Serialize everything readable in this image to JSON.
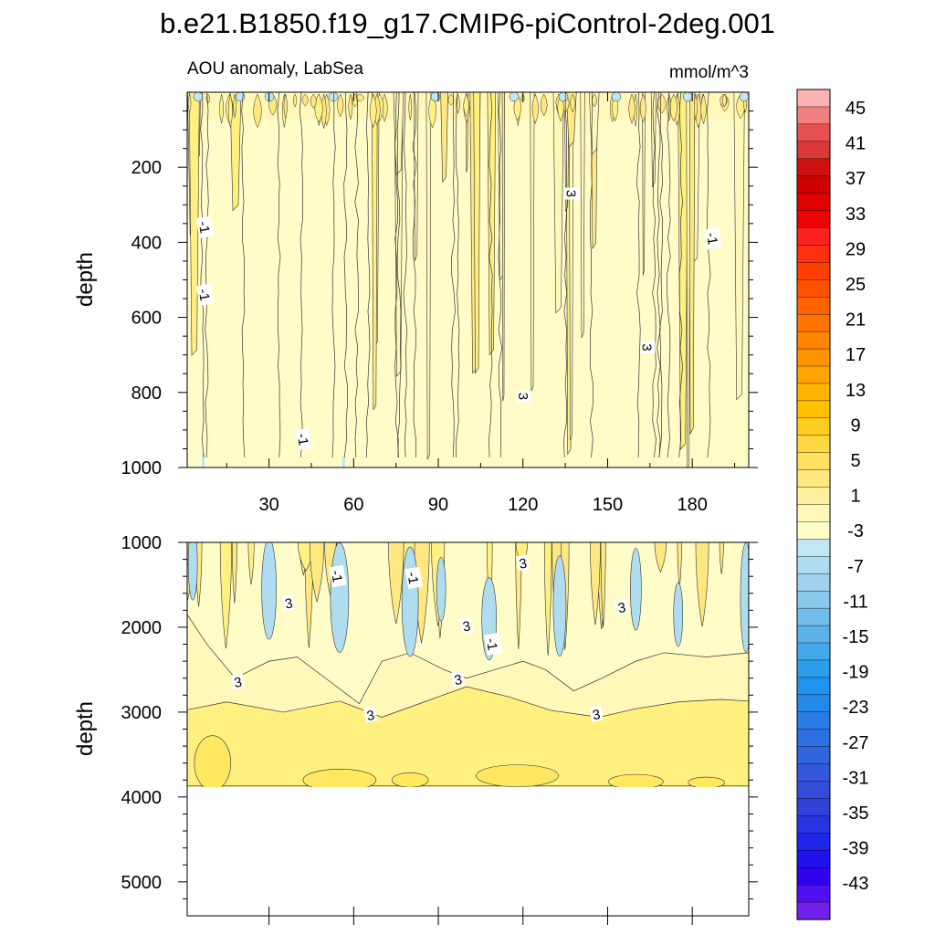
{
  "title": "b.e21.B1850.f19_g17.CMIP6-piControl-2deg.001",
  "chart_data": [
    {
      "type": "contour",
      "panel": "upper",
      "left_label": "AOU anomaly, LabSea",
      "right_label": "mmol/m^3",
      "ylabel": "depth",
      "xlabel": "",
      "xlim": [
        1,
        200
      ],
      "ylim": [
        1000,
        0
      ],
      "x_ticks": [
        30,
        60,
        90,
        120,
        150,
        180
      ],
      "x_tick_labels": [
        "30",
        "60",
        "90",
        "120",
        "150",
        "180"
      ],
      "y_ticks": [
        200,
        400,
        600,
        800,
        1000
      ],
      "y_tick_labels": [
        "200",
        "400",
        "600",
        "800",
        "1000"
      ],
      "contour_labels": [
        {
          "text": "-1",
          "x": 7,
          "y": 360
        },
        {
          "text": "-1",
          "x": 7,
          "y": 540
        },
        {
          "text": "-1",
          "x": 42,
          "y": 925
        },
        {
          "text": "3",
          "x": 137,
          "y": 270
        },
        {
          "text": "-1",
          "x": 187,
          "y": 390
        },
        {
          "text": "3",
          "x": 164,
          "y": 680
        },
        {
          "text": "3",
          "x": 120,
          "y": 810
        }
      ]
    },
    {
      "type": "contour",
      "panel": "lower",
      "ylabel": "depth",
      "xlabel": "",
      "xlim": [
        1,
        200
      ],
      "ylim": [
        5400,
        1000
      ],
      "data_bottom_depth": 3870,
      "y_ticks": [
        1000,
        2000,
        3000,
        4000,
        5000
      ],
      "y_tick_labels": [
        "1000",
        "2000",
        "3000",
        "4000",
        "5000"
      ],
      "contour_labels": [
        {
          "text": "-1",
          "x": 54,
          "y": 1400
        },
        {
          "text": "-1",
          "x": 81,
          "y": 1420
        },
        {
          "text": "3",
          "x": 37,
          "y": 1720
        },
        {
          "text": "3",
          "x": 120,
          "y": 1250
        },
        {
          "text": "3",
          "x": 100,
          "y": 1990
        },
        {
          "text": "-1",
          "x": 109,
          "y": 2200
        },
        {
          "text": "3",
          "x": 155,
          "y": 1770
        },
        {
          "text": "3",
          "x": 19,
          "y": 2650
        },
        {
          "text": "3",
          "x": 97,
          "y": 2620
        },
        {
          "text": "3",
          "x": 66,
          "y": 3040
        },
        {
          "text": "3",
          "x": 146,
          "y": 3030
        }
      ]
    }
  ],
  "colorbar": {
    "labels": [
      "45",
      "41",
      "37",
      "33",
      "29",
      "25",
      "21",
      "17",
      "13",
      "9",
      "5",
      "1",
      "-3",
      "-7",
      "-11",
      "-15",
      "-19",
      "-23",
      "-27",
      "-31",
      "-35",
      "-39",
      "-43"
    ],
    "colors": [
      "#fbb3b3",
      "#f08080",
      "#e85050",
      "#dc3838",
      "#cc1010",
      "#d00000",
      "#e00000",
      "#f00000",
      "#ff2020",
      "#ff3010",
      "#ff4000",
      "#ff5200",
      "#ff6400",
      "#ff7400",
      "#ff8400",
      "#ff9400",
      "#ffa400",
      "#ffb400",
      "#ffc000",
      "#ffcc20",
      "#ffd840",
      "#ffe060",
      "#ffe880",
      "#fff0a0",
      "#fff8b8",
      "#fffcc8",
      "#c2e6f4",
      "#b0dcf0",
      "#9ed2ee",
      "#8ac8ec",
      "#72bcea",
      "#5cb2e8",
      "#42a8e8",
      "#2c9eea",
      "#1e94ee",
      "#2288ea",
      "#2a7ce6",
      "#2e70e2",
      "#3064e0",
      "#3458dc",
      "#344cd8",
      "#3040d8",
      "#2834e0",
      "#2026e8",
      "#2010ee",
      "#3000f0",
      "#5010f0",
      "#7020e8"
    ]
  }
}
